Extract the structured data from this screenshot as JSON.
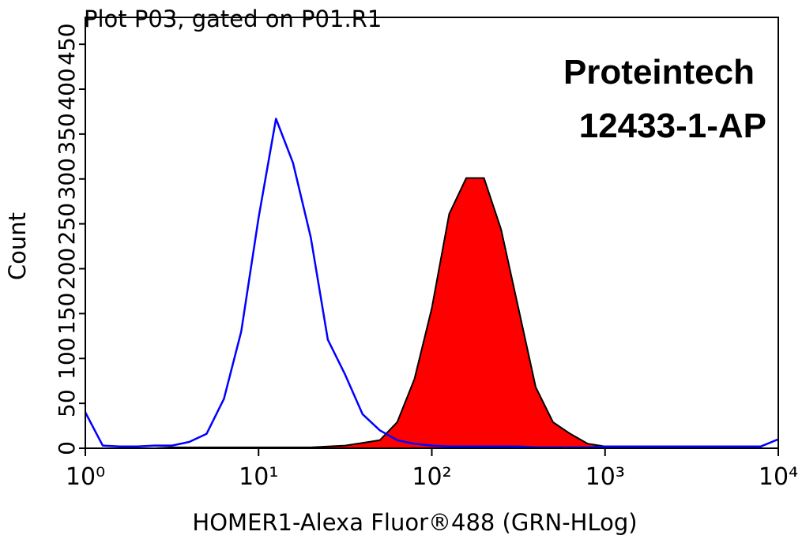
{
  "chart_data": {
    "type": "histogram-overlay",
    "title": "Plot P03, gated on P01.R1",
    "annotations": [
      "Proteintech",
      "12433-1-AP"
    ],
    "x_label": "HOMER1-Alexa Fluor®488 (GRN-HLog)",
    "y_label": "Count",
    "x_scale": "log",
    "xlim": [
      1,
      10000
    ],
    "xticks": [
      {
        "value": 1,
        "label": "10⁰"
      },
      {
        "value": 10,
        "label": "10¹"
      },
      {
        "value": 100,
        "label": "10²"
      },
      {
        "value": 1000,
        "label": "10³"
      },
      {
        "value": 10000,
        "label": "10⁴"
      }
    ],
    "ylim": [
      0,
      480
    ],
    "yticks": [
      0,
      50,
      100,
      150,
      200,
      250,
      300,
      350,
      400,
      450
    ],
    "x": [
      1,
      1.26,
      1.58,
      2,
      2.51,
      3.16,
      3.98,
      5.01,
      6.31,
      7.94,
      10,
      12.6,
      15.8,
      20,
      25.1,
      31.6,
      39.8,
      50.1,
      63.1,
      79.4,
      100,
      126,
      158,
      200,
      251,
      316,
      398,
      501,
      631,
      794,
      1000,
      1260,
      1580,
      2000,
      2510,
      3160,
      3980,
      5010,
      6310,
      7940,
      10000
    ],
    "series": [
      {
        "color": "#ff0000",
        "outline": "#000000",
        "style": "area",
        "values": [
          0,
          0,
          0,
          0,
          0,
          1,
          1,
          1,
          1,
          1,
          1,
          1,
          1,
          1,
          2,
          3,
          6,
          9,
          29,
          77,
          156,
          261,
          301,
          301,
          244,
          156,
          68,
          29,
          16,
          5,
          2,
          1,
          1,
          0,
          0,
          0,
          0,
          0,
          0,
          0,
          0
        ]
      },
      {
        "color": "#0000ff",
        "style": "line",
        "values": [
          40,
          3,
          2,
          2,
          3,
          3,
          7,
          16,
          55,
          130,
          257,
          367,
          318,
          235,
          121,
          82,
          38,
          20,
          9,
          5,
          3,
          2,
          2,
          2,
          2,
          2,
          1,
          1,
          1,
          1,
          2,
          2,
          2,
          2,
          2,
          2,
          2,
          2,
          2,
          2,
          10
        ]
      }
    ]
  }
}
